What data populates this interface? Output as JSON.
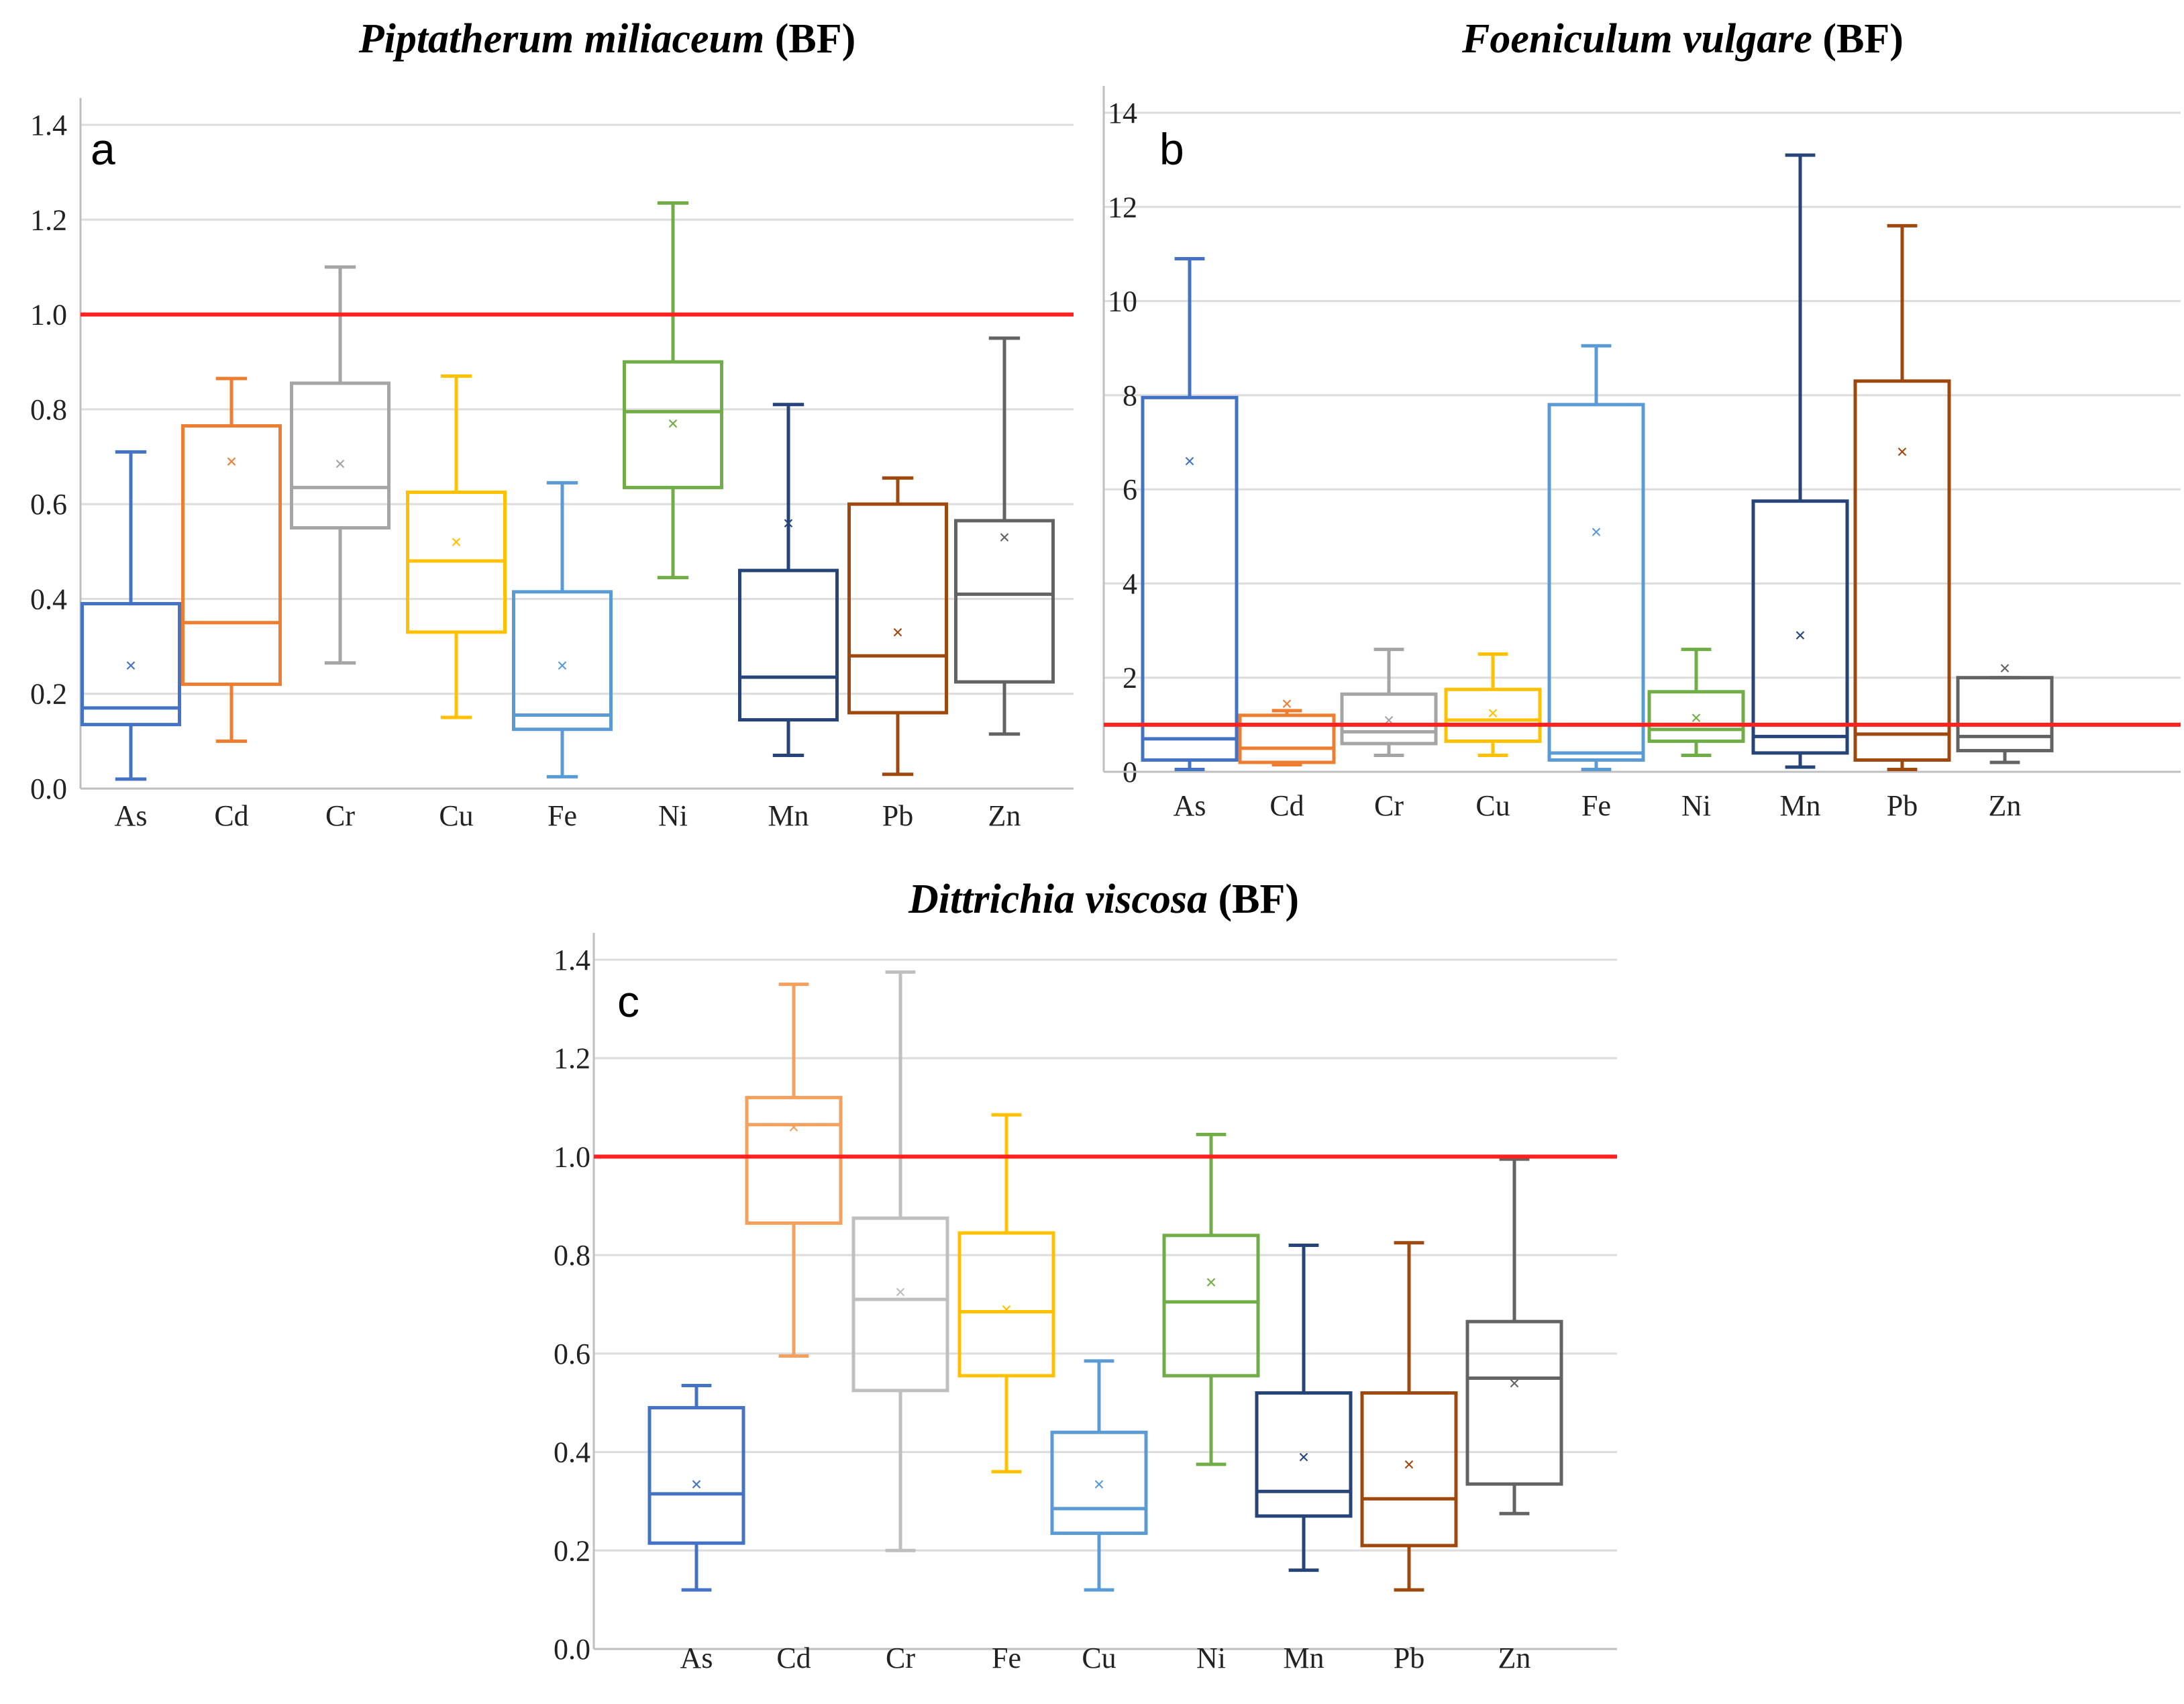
{
  "figure": {
    "reference_line_color": "#ff2020",
    "grid_color": "#dcdcdc",
    "axis_color": "#bfbfbf"
  },
  "chart_data": [
    {
      "id": "a",
      "type": "box",
      "panel_label": "a",
      "title_species": "Piptatherum miliaceum",
      "title_suffix": "(BF)",
      "ylim": [
        0,
        1.4
      ],
      "yticks": [
        "0.0",
        "0.2",
        "0.4",
        "0.6",
        "0.8",
        "1.0",
        "1.2",
        "1.4"
      ],
      "tick_values": [
        0,
        0.2,
        0.4,
        0.6,
        0.8,
        1.0,
        1.2,
        1.4
      ],
      "reference_line": 1.0,
      "categories": [
        "As",
        "Cd",
        "Cr",
        "Cu",
        "Fe",
        "Ni",
        "Mn",
        "Pb",
        "Zn"
      ],
      "boxes": [
        {
          "name": "As",
          "color": "#4472c4",
          "min": 0.02,
          "q1": 0.135,
          "median": 0.17,
          "q3": 0.39,
          "max": 0.71,
          "mean": 0.26
        },
        {
          "name": "Cd",
          "color": "#ed7d31",
          "min": 0.1,
          "q1": 0.22,
          "median": 0.35,
          "q3": 0.765,
          "max": 0.865,
          "mean": 0.69
        },
        {
          "name": "Cr",
          "color": "#a5a5a5",
          "min": 0.265,
          "q1": 0.55,
          "median": 0.635,
          "q3": 0.855,
          "max": 1.1,
          "mean": 0.685
        },
        {
          "name": "Cu",
          "color": "#ffc000",
          "min": 0.15,
          "q1": 0.33,
          "median": 0.48,
          "q3": 0.625,
          "max": 0.87,
          "mean": 0.52
        },
        {
          "name": "Fe",
          "color": "#5b9bd5",
          "min": 0.025,
          "q1": 0.125,
          "median": 0.155,
          "q3": 0.415,
          "max": 0.645,
          "mean": 0.26
        },
        {
          "name": "Ni",
          "color": "#70ad47",
          "min": 0.445,
          "q1": 0.635,
          "median": 0.795,
          "q3": 0.9,
          "max": 1.235,
          "mean": 0.77
        },
        {
          "name": "Mn",
          "color": "#264478",
          "min": 0.07,
          "q1": 0.145,
          "median": 0.235,
          "q3": 0.46,
          "max": 0.81,
          "mean": 0.56
        },
        {
          "name": "Pb",
          "color": "#9e480e",
          "min": 0.03,
          "q1": 0.16,
          "median": 0.28,
          "q3": 0.6,
          "max": 0.655,
          "mean": 0.33
        },
        {
          "name": "Zn",
          "color": "#636363",
          "min": 0.115,
          "q1": 0.225,
          "median": 0.41,
          "q3": 0.565,
          "max": 0.95,
          "mean": 0.53
        }
      ]
    },
    {
      "id": "b",
      "type": "box",
      "panel_label": "b",
      "title_species": "Foeniculum vulgare",
      "title_suffix": "(BF)",
      "ylim": [
        0,
        14
      ],
      "yticks": [
        "0",
        "2",
        "4",
        "6",
        "8",
        "10",
        "12",
        "14"
      ],
      "tick_values": [
        0,
        2,
        4,
        6,
        8,
        10,
        12,
        14
      ],
      "reference_line": 1.0,
      "categories": [
        "As",
        "Cd",
        "Cr",
        "Cu",
        "Fe",
        "Ni",
        "Mn",
        "Pb",
        "Zn"
      ],
      "boxes": [
        {
          "name": "As",
          "color": "#4472c4",
          "min": 0.05,
          "q1": 0.25,
          "median": 0.7,
          "q3": 7.95,
          "max": 10.9,
          "mean": 6.6
        },
        {
          "name": "Cd",
          "color": "#ed7d31",
          "min": 0.15,
          "q1": 0.2,
          "median": 0.5,
          "q3": 1.2,
          "max": 1.3,
          "mean": 1.45
        },
        {
          "name": "Cr",
          "color": "#a5a5a5",
          "min": 0.35,
          "q1": 0.6,
          "median": 0.85,
          "q3": 1.65,
          "max": 2.6,
          "mean": 1.1
        },
        {
          "name": "Cu",
          "color": "#ffc000",
          "min": 0.35,
          "q1": 0.65,
          "median": 1.1,
          "q3": 1.75,
          "max": 2.5,
          "mean": 1.25
        },
        {
          "name": "Fe",
          "color": "#5b9bd5",
          "min": 0.05,
          "q1": 0.25,
          "median": 0.4,
          "q3": 7.8,
          "max": 9.05,
          "mean": 5.1
        },
        {
          "name": "Ni",
          "color": "#70ad47",
          "min": 0.35,
          "q1": 0.65,
          "median": 0.9,
          "q3": 1.7,
          "max": 2.6,
          "mean": 1.15
        },
        {
          "name": "Mn",
          "color": "#264478",
          "min": 0.1,
          "q1": 0.4,
          "median": 0.75,
          "q3": 5.75,
          "max": 13.1,
          "mean": 2.9
        },
        {
          "name": "Pb",
          "color": "#9e480e",
          "min": 0.05,
          "q1": 0.25,
          "median": 0.8,
          "q3": 8.3,
          "max": 11.6,
          "mean": 6.8
        },
        {
          "name": "Zn",
          "color": "#636363",
          "min": 0.2,
          "q1": 0.45,
          "median": 0.75,
          "q3": 2.0,
          "max": 2.0,
          "mean": 2.2
        }
      ]
    },
    {
      "id": "c",
      "type": "box",
      "panel_label": "c",
      "title_species": "Dittrichia viscosa",
      "title_suffix": "(BF)",
      "ylim": [
        0,
        1.4
      ],
      "yticks": [
        "0.0",
        "0.2",
        "0.4",
        "0.6",
        "0.8",
        "1.0",
        "1.2",
        "1.4"
      ],
      "tick_values": [
        0,
        0.2,
        0.4,
        0.6,
        0.8,
        1.0,
        1.2,
        1.4
      ],
      "reference_line": 1.0,
      "categories": [
        "As",
        "Cd",
        "Cr",
        "Fe",
        "Cu",
        "Ni",
        "Mn",
        "Pb",
        "Zn"
      ],
      "boxes": [
        {
          "name": "As",
          "color": "#4472c4",
          "min": 0.12,
          "q1": 0.215,
          "median": 0.315,
          "q3": 0.49,
          "max": 0.535,
          "mean": 0.335
        },
        {
          "name": "Cd",
          "color": "#f4a160",
          "min": 0.595,
          "q1": 0.865,
          "median": 1.065,
          "q3": 1.12,
          "max": 1.35,
          "mean": 1.06
        },
        {
          "name": "Cr",
          "color": "#bfbfbf",
          "min": 0.2,
          "q1": 0.525,
          "median": 0.71,
          "q3": 0.875,
          "max": 1.375,
          "mean": 0.725
        },
        {
          "name": "Fe",
          "color": "#ffc000",
          "min": 0.36,
          "q1": 0.555,
          "median": 0.685,
          "q3": 0.845,
          "max": 1.085,
          "mean": 0.69
        },
        {
          "name": "Cu",
          "color": "#5b9bd5",
          "min": 0.12,
          "q1": 0.235,
          "median": 0.285,
          "q3": 0.44,
          "max": 0.585,
          "mean": 0.335
        },
        {
          "name": "Ni",
          "color": "#70ad47",
          "min": 0.375,
          "q1": 0.555,
          "median": 0.705,
          "q3": 0.84,
          "max": 1.045,
          "mean": 0.745
        },
        {
          "name": "Mn",
          "color": "#264478",
          "min": 0.16,
          "q1": 0.27,
          "median": 0.32,
          "q3": 0.52,
          "max": 0.82,
          "mean": 0.39
        },
        {
          "name": "Pb",
          "color": "#9e480e",
          "min": 0.12,
          "q1": 0.21,
          "median": 0.305,
          "q3": 0.52,
          "max": 0.825,
          "mean": 0.375
        },
        {
          "name": "Zn",
          "color": "#636363",
          "min": 0.275,
          "q1": 0.335,
          "median": 0.55,
          "q3": 0.665,
          "max": 0.995,
          "mean": 0.54
        }
      ]
    }
  ]
}
